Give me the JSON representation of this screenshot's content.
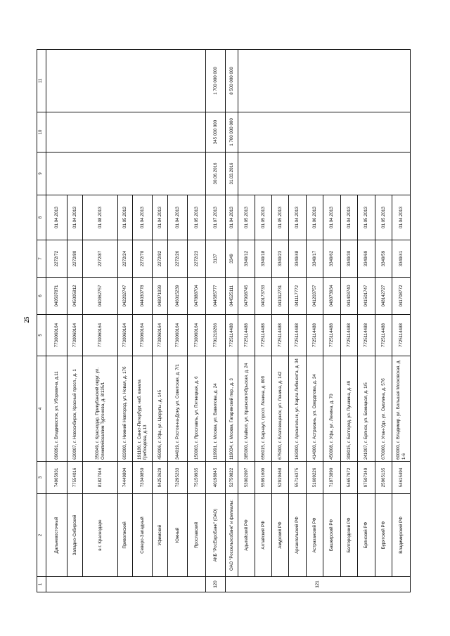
{
  "page_number": "25",
  "header_numbers": [
    "1",
    "2",
    "3",
    "4",
    "5",
    "6",
    "7",
    "8",
    "9",
    "10",
    "11"
  ],
  "rows": [
    {
      "num": "",
      "name": "Дальневосточный",
      "okpo": "74965931",
      "address": "690091, г. Владивосток, ул. Уборевича, д.11",
      "inn": "7730060164",
      "bik": "040507871",
      "reg": "2272/72",
      "date": "01.04.2013"
    },
    {
      "num": "",
      "name": "Западно-Сибирский",
      "okpo": "77554016",
      "address": "630007, г. Новосибирск, Красный просп., д. 1",
      "inn": "7730060164",
      "bik": "045005812",
      "reg": "2272/80",
      "date": "01.04.2013"
    },
    {
      "num": "",
      "name": "в г. Краснодаре",
      "okpo": "81827046",
      "address": "350049, г. Краснодар, Прикубанский округ, ул. Олимпийская/им Тургенева, д. 8/135/1",
      "inn": "7730060164",
      "bik": "040362757",
      "reg": "2272/87",
      "date": "01.08.2013"
    },
    {
      "num": "",
      "name": "Приволжский",
      "okpo": "74449804",
      "address": "603000, г. Нижний Новгород, ул. Новая, д. 17б",
      "inn": "7730060164",
      "bik": "042202747",
      "reg": "2272/24",
      "date": "01.05.2013"
    },
    {
      "num": "",
      "name": "Северо-Западный",
      "okpo": "73340850",
      "address": "191186, г. Санкт-Петербург, наб. канала Грибоедова, д.13",
      "inn": "7730060164",
      "bik": "044030778",
      "reg": "2272/70",
      "date": "01.04.2013"
    },
    {
      "num": "",
      "name": "Уфимский",
      "okpo": "94253629",
      "address": "450006, г. Уфа, ул. Цюрупы, д. 145",
      "inn": "7730060164",
      "bik": "048071939",
      "reg": "2272/82",
      "date": "01.04.2013"
    },
    {
      "num": "",
      "name": "Южный",
      "okpo": "73295233",
      "address": "344019, г. Ростов-на-Дону, ул. Советская, д. 7/1",
      "inn": "7730060164",
      "bik": "046015239",
      "reg": "2272/26",
      "date": "01.04.2013"
    },
    {
      "num": "",
      "name": "Ярославский",
      "okpo": "75150935",
      "address": "150003, г. Ярославль, ул. Пятницкая, д. 6",
      "inn": "7730060164",
      "bik": "047888704",
      "reg": "2272/23",
      "date": "01.05.2013"
    },
    {
      "num": "120",
      "name": "АКБ \"РосЕвроБанк\" (ОАО)",
      "okpo": "40198845",
      "address": "119991, г. Москва, ул. Вавилова, д. 24",
      "inn": "7701219266",
      "bik": "044585777",
      "reg": "3137",
      "date": "01.07.2013",
      "end_date": "30.06.2016",
      "amount": "345 000 000",
      "limit": "1 700 000 000"
    },
    {
      "num": "121",
      "name": "ОАО \"Россельхозбанк\" и филиалы:",
      "okpo": "52750822",
      "address": "119034, г. Москва, Гагаринский пер., д. 3",
      "inn": "7725114488",
      "bik": "044525111",
      "reg": "3349",
      "date": "01.04.2013",
      "end_date": "31.03.2016",
      "amount": "1 700 000 000",
      "limit": "8 500 000 000"
    },
    {
      "num": "",
      "name": "Адыгейский РФ",
      "okpo": "53002097",
      "address": "385000, г. Майкоп, ул. Краснооктябрьская, д. 24",
      "inn": "7725114488",
      "bik": "047908745",
      "reg": "3349/12",
      "date": "01.05.2013"
    },
    {
      "num": "",
      "name": "Алтайский РФ",
      "okpo": "55991609",
      "address": "656015, г. Барнаул, просп. Ленина, д. 80б",
      "inn": "7725114488",
      "bik": "040173733",
      "reg": "3349/18",
      "date": "01.05.2013"
    },
    {
      "num": "",
      "name": "Амурский РФ",
      "okpo": "52919468",
      "address": "675000, г. Благовещенск, ул. Ленина, д. 142",
      "inn": "7725114488",
      "bik": "041012731",
      "reg": "3349/23",
      "date": "01.05.2013"
    },
    {
      "num": "",
      "name": "Архангельский РФ",
      "okpo": "55716375",
      "address": "163000, г. Архангельск, ул. Карла Либкнехта, д. 34",
      "inn": "7725114488",
      "bik": "041117772",
      "reg": "3349/48",
      "date": "01.04.2013"
    },
    {
      "num": "",
      "name": "Астраханский РФ",
      "okpo": "51609226",
      "address": "414000, г. Астрахань, ул. Свердлова, д. 34",
      "inn": "7725114488",
      "bik": "041203757",
      "reg": "3349/17",
      "date": "01.06.2013"
    },
    {
      "num": "",
      "name": "Башкирский РФ",
      "okpo": "71873890",
      "address": "450008, г. Уфа, ул. Ленина, д. 70",
      "inn": "7725114488",
      "bik": "048073934",
      "reg": "3349/62",
      "date": "01.04.2013"
    },
    {
      "num": "",
      "name": "Белгородский РФ",
      "okpo": "54657972",
      "address": "308015, г. Белгород, ул. Пушкина, д. 49",
      "inn": "7725114488",
      "bik": "041403740",
      "reg": "3349/30",
      "date": "01.04.2013"
    },
    {
      "num": "",
      "name": "Брянский РФ",
      "okpo": "97507349",
      "address": "241007, г. Брянск, ул. Бежицкая, д. 1/5",
      "inn": "7725114488",
      "bik": "041501747",
      "reg": "3349/69",
      "date": "01.05.2013"
    },
    {
      "num": "",
      "name": "Бурятский РФ",
      "okpo": "25965135",
      "address": "670000, г. Улан-Удэ, ул. Смолина, д. 57б",
      "inn": "7725114488",
      "bik": "048142727",
      "reg": "3349/59",
      "date": "01.05.2013"
    },
    {
      "num": "",
      "name": "Владимирский РФ",
      "okpo": "54615494",
      "address": "600000, г. Владимир, ул. Большая Московская, д. 1-6",
      "inn": "7725114488",
      "bik": "041708772",
      "reg": "3349/41",
      "date": "01.04.2013"
    }
  ]
}
